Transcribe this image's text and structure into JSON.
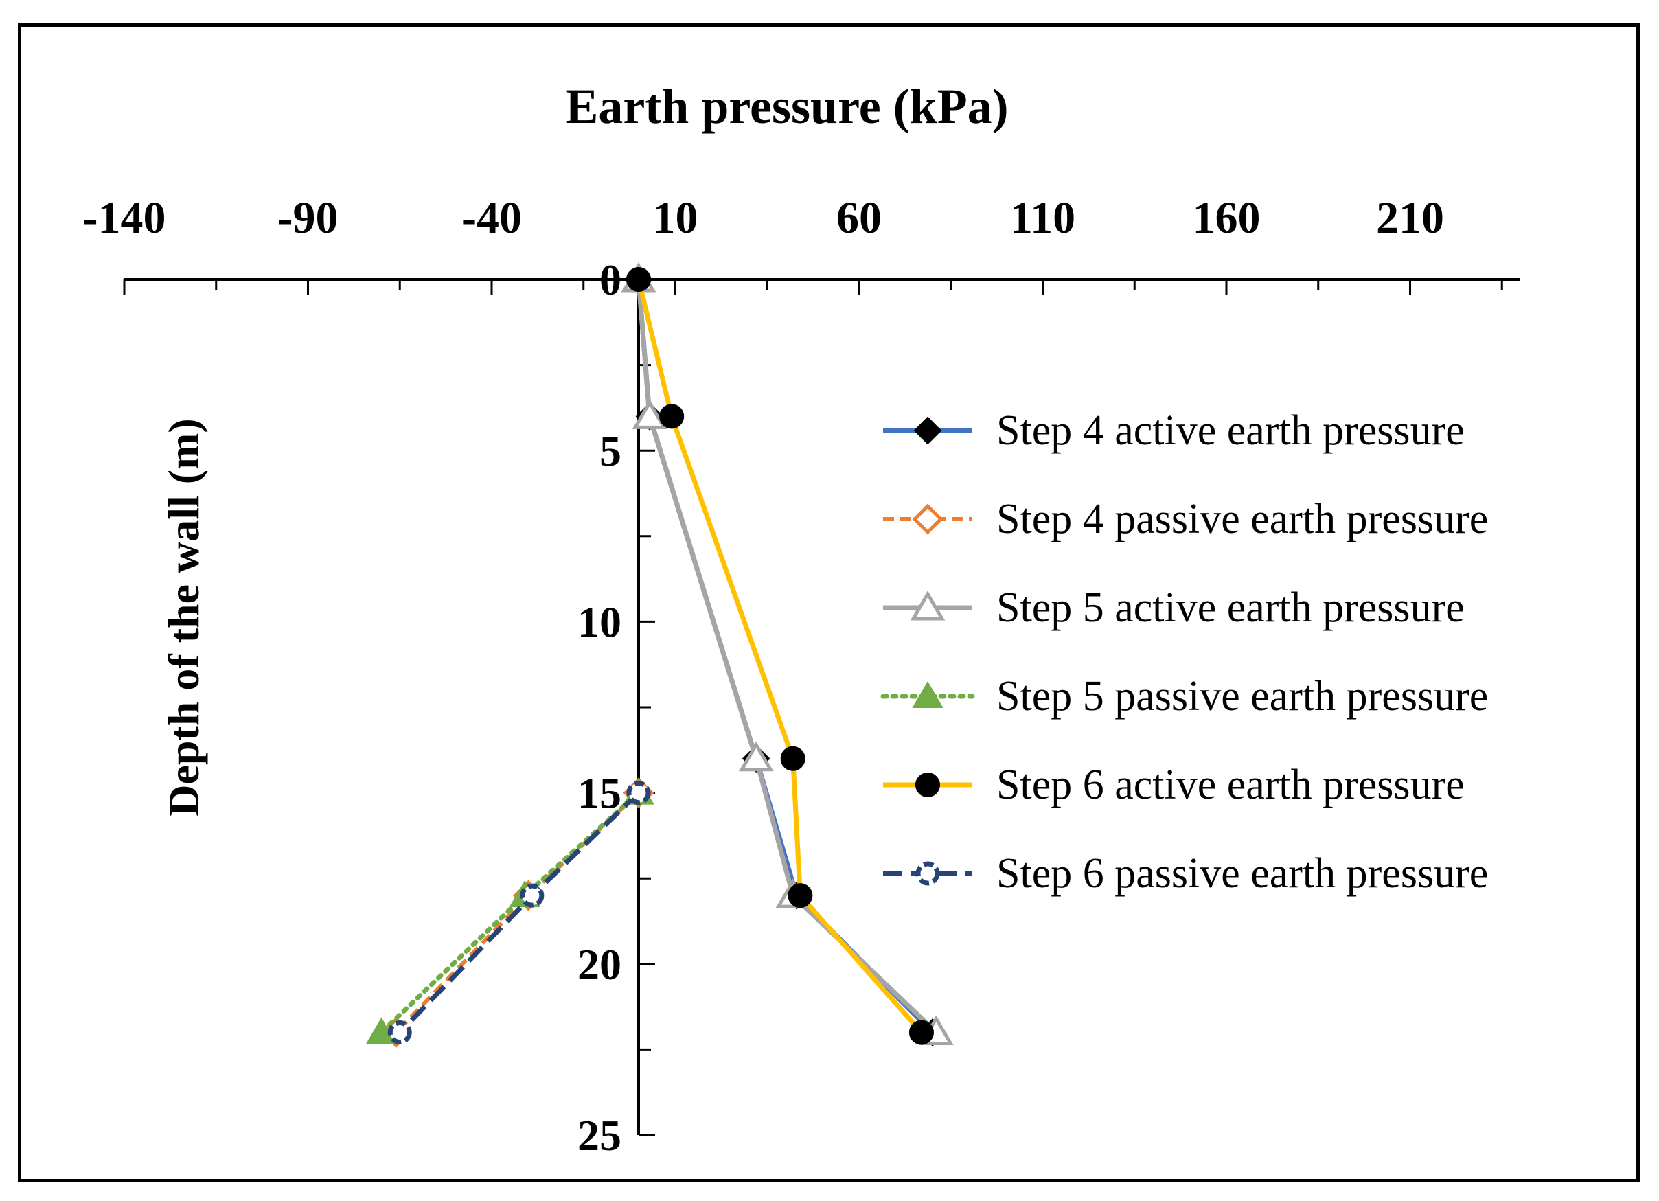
{
  "chart_data": {
    "type": "line",
    "title": "Earth pressure (kPa)",
    "xlabel": "Earth pressure (kPa)",
    "ylabel": "Depth of the wall (m)",
    "xlim": [
      -140,
      240
    ],
    "ylim": [
      0,
      25
    ],
    "y_inverted": true,
    "x_axis_position": "top",
    "x_ticks": [
      -140,
      -90,
      -40,
      10,
      60,
      110,
      160,
      210
    ],
    "x_tick_labels": [
      "-140",
      "-90",
      "-40",
      "10",
      "60",
      "110",
      "160",
      "210"
    ],
    "y_ticks": [
      0,
      5,
      10,
      15,
      20,
      25
    ],
    "y_tick_labels": [
      "0",
      "5",
      "10",
      "15",
      "20",
      "25"
    ],
    "grid": false,
    "legend_position": "right",
    "series": [
      {
        "name": "Step 4 active earth pressure",
        "color": "#4472C4",
        "marker": "diamond-filled",
        "marker_color": "#000000",
        "dash": "solid",
        "points": [
          [
            0,
            0
          ],
          [
            3,
            4
          ],
          [
            32,
            14
          ],
          [
            43,
            18
          ],
          [
            80,
            22
          ]
        ]
      },
      {
        "name": "Step 4 passive earth pressure",
        "color": "#ED7D31",
        "marker": "diamond-open",
        "marker_color": "#ED7D31",
        "dash": "dash",
        "points": [
          [
            0,
            15
          ],
          [
            -30,
            18
          ],
          [
            -66,
            22
          ]
        ]
      },
      {
        "name": "Step 5 active earth pressure",
        "color": "#A5A5A5",
        "marker": "triangle-open",
        "marker_color": "#A5A5A5",
        "dash": "solid",
        "points": [
          [
            0,
            0
          ],
          [
            3,
            4
          ],
          [
            32,
            14
          ],
          [
            42,
            18
          ],
          [
            81,
            22
          ]
        ]
      },
      {
        "name": "Step 5 passive earth pressure",
        "color": "#70AD47",
        "marker": "triangle-filled",
        "marker_color": "#70AD47",
        "dash": "dot",
        "points": [
          [
            0,
            15
          ],
          [
            -31,
            18
          ],
          [
            -70,
            22
          ]
        ]
      },
      {
        "name": "Step 6 active earth pressure",
        "color": "#FFC000",
        "marker": "circle-filled",
        "marker_color": "#000000",
        "dash": "solid",
        "points": [
          [
            0,
            0
          ],
          [
            9,
            4
          ],
          [
            42,
            14
          ],
          [
            44,
            18
          ],
          [
            77,
            22
          ]
        ]
      },
      {
        "name": "Step 6 passive earth pressure",
        "color": "#264478",
        "marker": "circle-open",
        "marker_color": "#264478",
        "dash": "longdash",
        "points": [
          [
            0,
            15
          ],
          [
            -29,
            18
          ],
          [
            -65,
            22
          ]
        ]
      }
    ]
  }
}
